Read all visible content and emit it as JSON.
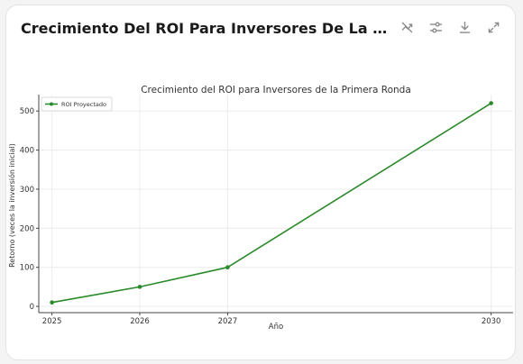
{
  "card": {
    "title": "Crecimiento Del ROI Para Inversores De La Primera Ronda"
  },
  "toolbar": {
    "icons": [
      "hide-chart-icon",
      "filter-icon",
      "download-icon",
      "expand-icon"
    ]
  },
  "chart_data": {
    "type": "line",
    "title": "Crecimiento del ROI para Inversores de la Primera Ronda",
    "xlabel": "Año",
    "ylabel": "Retorno (veces la inversión inicial)",
    "x": [
      2025,
      2026,
      2027,
      2030
    ],
    "xticks": [
      "2025",
      "2026",
      "2027",
      "2030"
    ],
    "yticks": [
      "0",
      "100",
      "200",
      "300",
      "400",
      "500"
    ],
    "xlim": [
      2024.85,
      2030.25
    ],
    "ylim": [
      -16,
      542
    ],
    "grid": true,
    "legend_position": "top-left",
    "series": [
      {
        "name": "ROI Proyectado",
        "values": [
          10,
          50,
          100,
          520
        ],
        "color": "#2a8a2a"
      }
    ]
  }
}
